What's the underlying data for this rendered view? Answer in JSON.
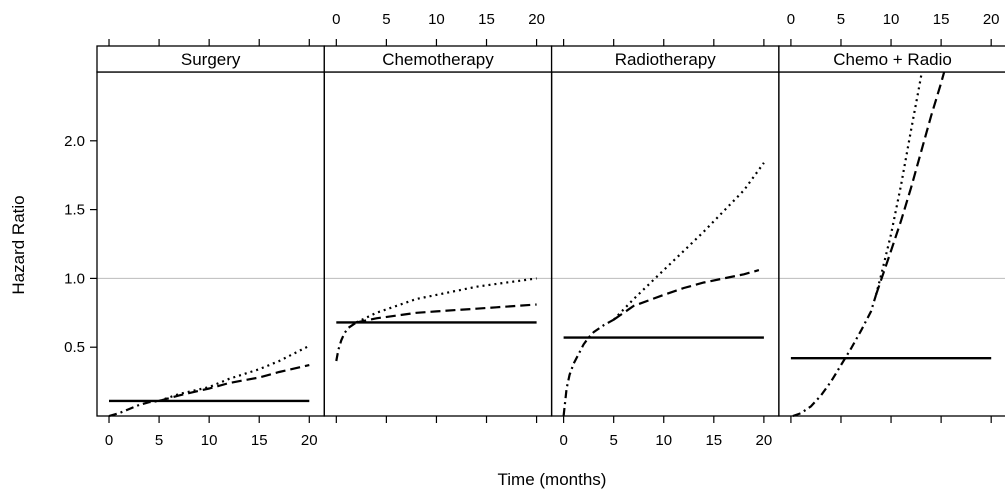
{
  "chart_data": {
    "type": "line",
    "xlabel": "Time (months)",
    "ylabel": "Hazard Ratio",
    "xlim": [
      -1.2,
      21.5
    ],
    "ylim": [
      0.0,
      2.5
    ],
    "x_ticks": [
      0,
      5,
      10,
      15,
      20
    ],
    "x_tick_labels": [
      "0",
      "5",
      "10",
      "15",
      "20"
    ],
    "y_ticks": [
      0.5,
      1.0,
      1.5,
      2.0
    ],
    "y_tick_labels": [
      "0.5",
      "1.0",
      "1.5",
      "2.0"
    ],
    "reference_line": {
      "y": 1.0,
      "color": "#bbbbbb"
    },
    "line_color": "#000000",
    "line_styles": [
      "solid",
      "dashed",
      "dotted",
      "dashdot"
    ],
    "grid": false,
    "panels": [
      {
        "label": "Surgery",
        "series": [
          {
            "style": "solid",
            "x": [
              0,
              20
            ],
            "y": [
              0.11,
              0.11
            ]
          },
          {
            "style": "dashed",
            "x": [
              5,
              7,
              10,
              12,
              15,
              17,
              20
            ],
            "y": [
              0.11,
              0.15,
              0.2,
              0.24,
              0.28,
              0.32,
              0.37
            ]
          },
          {
            "style": "dotted",
            "x": [
              5,
              7,
              10,
              12,
              15,
              17,
              20
            ],
            "y": [
              0.11,
              0.16,
              0.21,
              0.27,
              0.34,
              0.4,
              0.51
            ]
          },
          {
            "style": "dashdot",
            "x": [
              0,
              1,
              2,
              3,
              4,
              5
            ],
            "y": [
              0.0,
              0.02,
              0.05,
              0.08,
              0.1,
              0.11
            ]
          }
        ]
      },
      {
        "label": "Chemotherapy",
        "series": [
          {
            "style": "solid",
            "x": [
              0,
              20
            ],
            "y": [
              0.68,
              0.68
            ]
          },
          {
            "style": "dashed",
            "x": [
              2,
              4,
              6,
              8,
              10,
              12,
              14,
              16,
              18,
              20
            ],
            "y": [
              0.68,
              0.71,
              0.73,
              0.75,
              0.76,
              0.77,
              0.78,
              0.79,
              0.8,
              0.81
            ]
          },
          {
            "style": "dotted",
            "x": [
              2,
              4,
              6,
              8,
              10,
              12,
              14,
              16,
              18,
              20
            ],
            "y": [
              0.68,
              0.75,
              0.8,
              0.85,
              0.88,
              0.91,
              0.94,
              0.96,
              0.98,
              1.0
            ]
          },
          {
            "style": "dashdot",
            "x": [
              0,
              0.2,
              0.5,
              0.8,
              1.2,
              1.6,
              2
            ],
            "y": [
              0.4,
              0.48,
              0.55,
              0.6,
              0.64,
              0.66,
              0.68
            ]
          }
        ]
      },
      {
        "label": "Radiotherapy",
        "series": [
          {
            "style": "solid",
            "x": [
              0,
              20
            ],
            "y": [
              0.57,
              0.57
            ]
          },
          {
            "style": "dashed",
            "x": [
              5,
              7,
              10,
              12,
              14,
              16,
              18,
              19.5
            ],
            "y": [
              0.7,
              0.8,
              0.88,
              0.93,
              0.97,
              1.0,
              1.03,
              1.06
            ]
          },
          {
            "style": "dotted",
            "x": [
              5,
              7,
              10,
              12,
              14,
              16,
              18,
              20
            ],
            "y": [
              0.7,
              0.85,
              1.06,
              1.2,
              1.34,
              1.49,
              1.64,
              1.84
            ]
          },
          {
            "style": "dashdot",
            "x": [
              0,
              0.3,
              0.6,
              1,
              1.5,
              2,
              2.5,
              3,
              4,
              5
            ],
            "y": [
              0.0,
              0.2,
              0.3,
              0.38,
              0.45,
              0.52,
              0.57,
              0.61,
              0.66,
              0.7
            ]
          }
        ]
      },
      {
        "label": "Chemo + Radio",
        "series": [
          {
            "style": "solid",
            "x": [
              0,
              20
            ],
            "y": [
              0.42,
              0.42
            ]
          },
          {
            "style": "dashed",
            "x": [
              8.5,
              10,
              11,
              12,
              13,
              14,
              15,
              15.5
            ],
            "y": [
              0.88,
              1.2,
              1.42,
              1.66,
              1.92,
              2.18,
              2.42,
              2.55
            ]
          },
          {
            "style": "dotted",
            "x": [
              8.5,
              9,
              10,
              11,
              12,
              12.7,
              13.2
            ],
            "y": [
              0.88,
              1.02,
              1.32,
              1.68,
              2.08,
              2.35,
              2.55
            ]
          },
          {
            "style": "dashdot",
            "x": [
              0.2,
              1,
              2,
              3,
              4,
              5,
              6,
              7,
              8,
              8.5
            ],
            "y": [
              0.0,
              0.02,
              0.07,
              0.15,
              0.25,
              0.37,
              0.49,
              0.62,
              0.76,
              0.88
            ]
          }
        ]
      }
    ]
  }
}
